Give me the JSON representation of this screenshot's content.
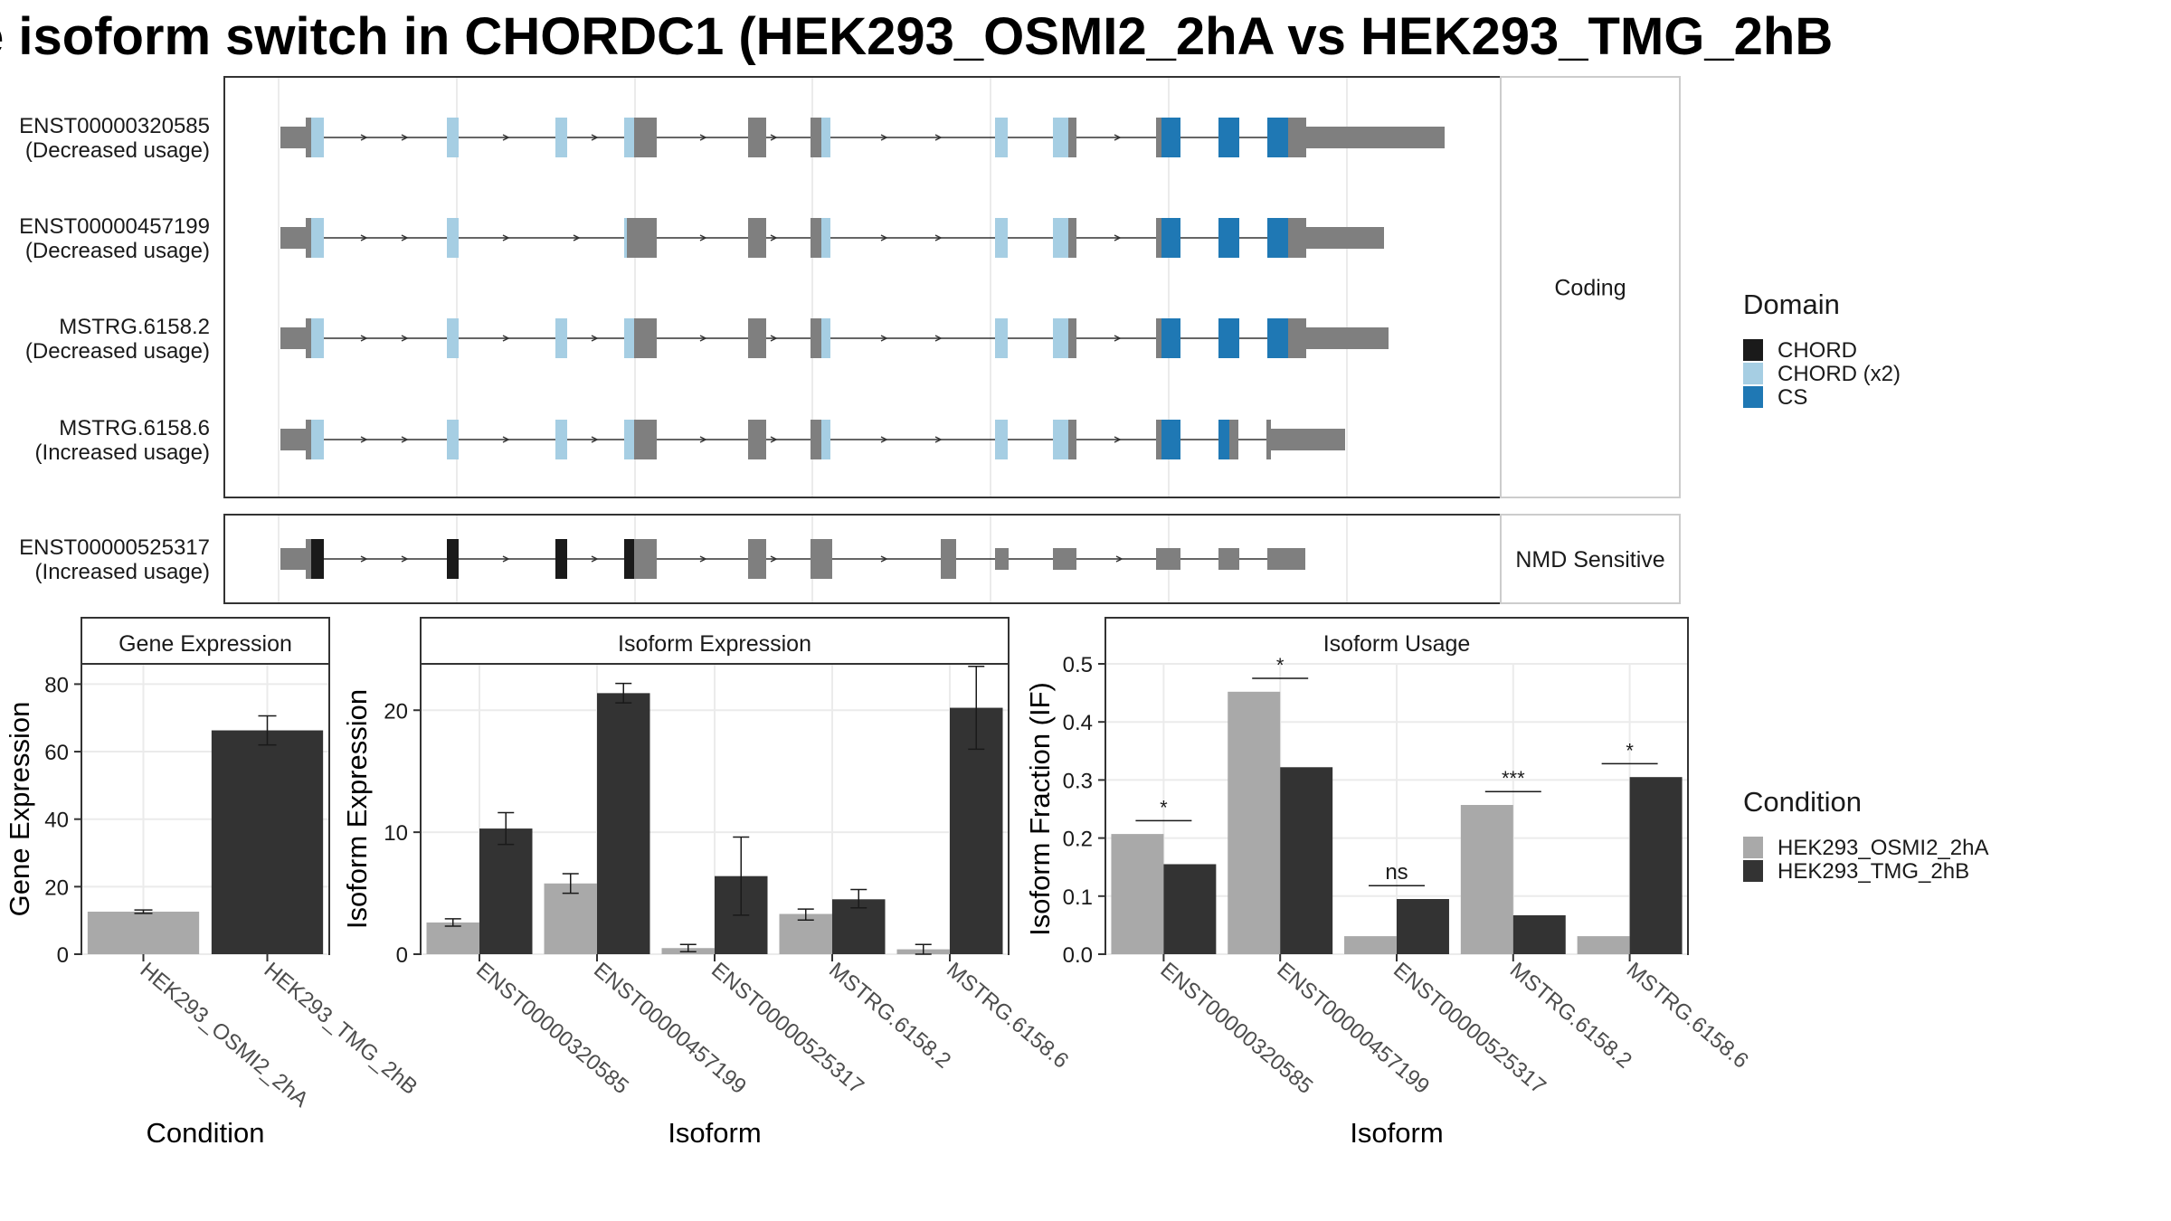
{
  "title": "e isoform switch in CHORDC1 (HEK293_OSMI2_2hA vs HEK293_TMG_2hB",
  "colors": {
    "chord": "#1a1a1a",
    "chord_x2": "#a6cee3",
    "cs": "#1f78b4",
    "exon": "#7f7f7f",
    "cond1": "#a9a9a9",
    "cond2": "#333333"
  },
  "structure": {
    "facets": [
      {
        "label": "Coding",
        "transcripts": [
          {
            "id": "ENST00000320585",
            "usage": "(Decreased usage)"
          },
          {
            "id": "ENST00000457199",
            "usage": "(Decreased usage)"
          },
          {
            "id": "MSTRG.6158.2",
            "usage": "(Decreased usage)"
          },
          {
            "id": "MSTRG.6158.6",
            "usage": "(Increased usage)"
          }
        ]
      },
      {
        "label": "NMD Sensitive",
        "transcripts": [
          {
            "id": "ENST00000525317",
            "usage": "(Increased usage)"
          }
        ]
      }
    ]
  },
  "domain_legend": {
    "title": "Domain",
    "items": [
      {
        "label": "CHORD",
        "color": "#1a1a1a"
      },
      {
        "label": "CHORD (x2)",
        "color": "#a6cee3"
      },
      {
        "label": "CS",
        "color": "#1f78b4"
      }
    ]
  },
  "condition_legend": {
    "title": "Condition",
    "items": [
      {
        "label": "HEK293_OSMI2_2hA",
        "color": "#a9a9a9"
      },
      {
        "label": "HEK293_TMG_2hB",
        "color": "#333333"
      }
    ]
  },
  "chart_data": [
    {
      "type": "bar",
      "title": "Gene Expression",
      "xlabel": "Condition",
      "ylabel": "Gene Expression",
      "ylim": [
        0,
        86
      ],
      "yticks": [
        0,
        20,
        40,
        60,
        80
      ],
      "categories": [
        "HEK293_OSMI2_2hA",
        "HEK293_TMG_2hB"
      ],
      "values": [
        12.6,
        66.3
      ],
      "error_low": [
        12.1,
        62.0
      ],
      "error_high": [
        13.1,
        70.6
      ],
      "grid": true
    },
    {
      "type": "bar",
      "title": "Isoform Expression",
      "xlabel": "Isoform",
      "ylabel": "Isoform Expression",
      "ylim": [
        0,
        23.8
      ],
      "yticks": [
        0,
        10,
        20
      ],
      "categories": [
        "ENST00000320585",
        "ENST00000457199",
        "ENST00000525317",
        "MSTRG.6158.2",
        "MSTRG.6158.6"
      ],
      "series": [
        {
          "name": "HEK293_OSMI2_2hA",
          "values": [
            2.6,
            5.8,
            0.5,
            3.3,
            0.4
          ],
          "error_low": [
            2.3,
            5.0,
            0.2,
            2.8,
            0.0
          ],
          "error_high": [
            2.9,
            6.6,
            0.8,
            3.7,
            0.8
          ]
        },
        {
          "name": "HEK293_TMG_2hB",
          "values": [
            10.3,
            21.4,
            6.4,
            4.5,
            20.2
          ],
          "error_low": [
            9.0,
            20.6,
            3.2,
            3.8,
            16.8
          ],
          "error_high": [
            11.6,
            22.2,
            9.6,
            5.3,
            23.6
          ]
        }
      ],
      "grid": true
    },
    {
      "type": "bar",
      "title": "Isoform Usage",
      "xlabel": "Isoform",
      "ylabel": "Isoform Fraction (IF)",
      "ylim": [
        0,
        0.5
      ],
      "yticks": [
        0.0,
        0.1,
        0.2,
        0.3,
        0.4,
        0.5
      ],
      "ytick_labels": [
        "0.0",
        "0.1",
        "0.2",
        "0.3",
        "0.4",
        "0.5"
      ],
      "categories": [
        "ENST00000320585",
        "ENST00000457199",
        "ENST00000525317",
        "MSTRG.6158.2",
        "MSTRG.6158.6"
      ],
      "series": [
        {
          "name": "HEK293_OSMI2_2hA",
          "values": [
            0.207,
            0.452,
            0.031,
            0.257,
            0.031
          ]
        },
        {
          "name": "HEK293_TMG_2hB",
          "values": [
            0.155,
            0.322,
            0.095,
            0.067,
            0.305
          ]
        }
      ],
      "annotations": [
        "*",
        "*",
        "ns",
        "***",
        "*"
      ],
      "annotation_y": [
        0.23,
        0.475,
        0.118,
        0.28,
        0.328
      ],
      "grid": true
    }
  ]
}
